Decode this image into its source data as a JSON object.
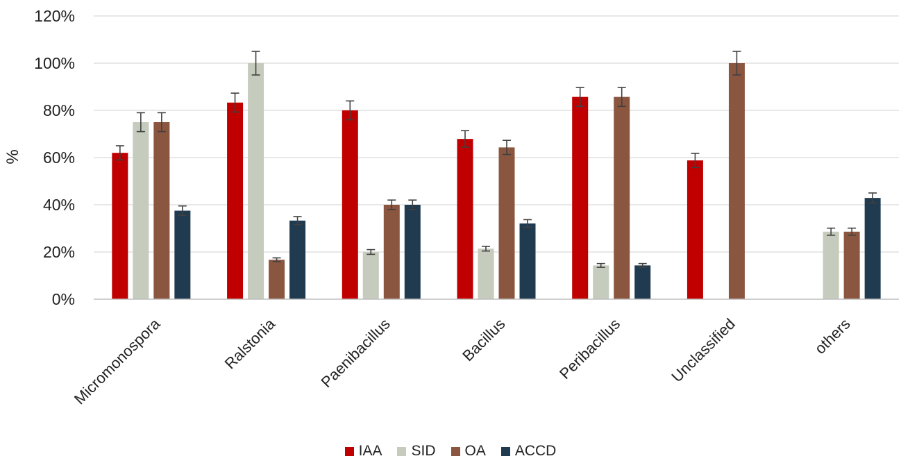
{
  "chart_data": {
    "type": "bar",
    "title": "",
    "xlabel": "",
    "ylabel": "%",
    "ylim": [
      0,
      120
    ],
    "yticks": [
      0,
      20,
      40,
      60,
      80,
      100,
      120
    ],
    "ytick_labels": [
      "0%",
      "20%",
      "40%",
      "60%",
      "80%",
      "100%",
      "120%"
    ],
    "grid": true,
    "legend_position": "bottom",
    "categories": [
      "Micromonospora",
      "Ralstonia",
      "Paenibacillus",
      "Bacillus",
      "Peribacillus",
      "Unclassified",
      "others"
    ],
    "series": [
      {
        "name": "IAA",
        "color": "#c00000",
        "values": [
          62,
          83.3,
          80,
          67.9,
          85.7,
          58.8,
          0
        ],
        "errors": [
          3,
          4,
          4,
          3.5,
          4,
          3,
          0
        ]
      },
      {
        "name": "SID",
        "color": "#c5cbbd",
        "values": [
          75,
          100,
          20,
          21.4,
          14.3,
          0,
          28.6
        ],
        "errors": [
          4,
          5,
          1,
          1,
          0.8,
          0,
          1.5
        ]
      },
      {
        "name": "OA",
        "color": "#8b5640",
        "values": [
          75,
          16.7,
          40,
          64.3,
          85.7,
          100,
          28.6
        ],
        "errors": [
          4,
          0.8,
          2,
          3,
          4,
          5,
          1.5
        ]
      },
      {
        "name": "ACCD",
        "color": "#203a50",
        "values": [
          37.5,
          33.3,
          40,
          32.1,
          14.3,
          0,
          42.9
        ],
        "errors": [
          2,
          1.7,
          2,
          1.6,
          0.8,
          0,
          2.1
        ]
      }
    ]
  }
}
